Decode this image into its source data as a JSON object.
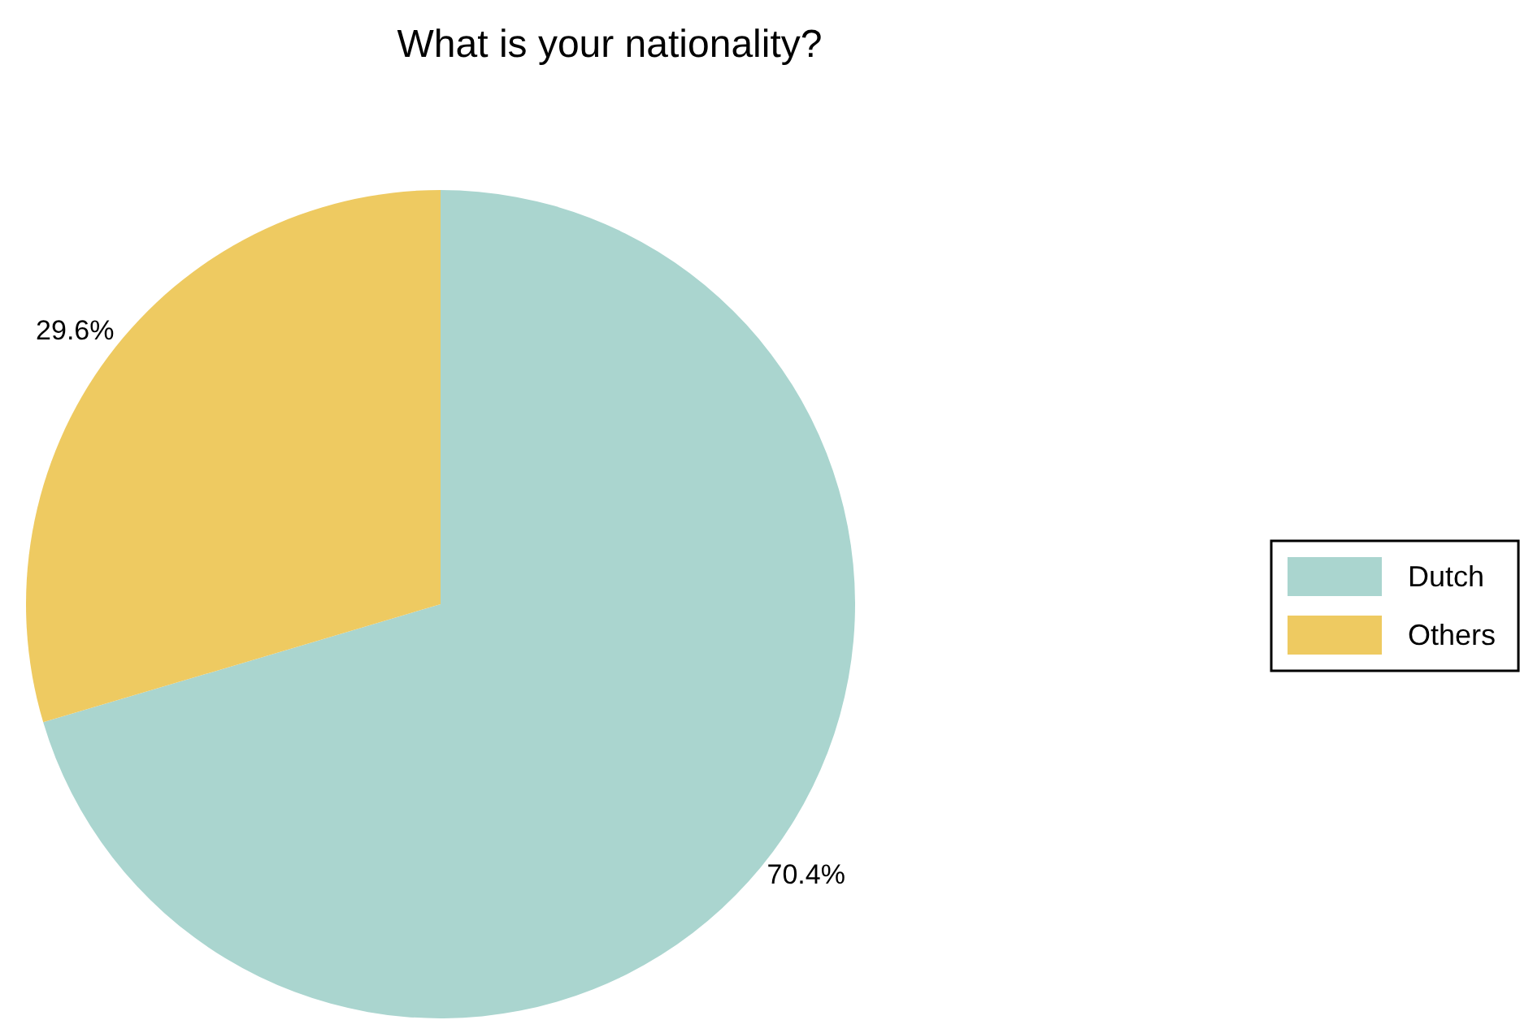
{
  "chart_data": {
    "type": "pie",
    "title": "What is your nationality?",
    "categories": [
      "Dutch",
      "Others"
    ],
    "values": [
      70.4,
      29.6
    ],
    "colors": [
      "#aad5cf",
      "#eeca61"
    ],
    "value_labels": [
      "70.4%",
      "29.6%"
    ],
    "legend": "right"
  }
}
